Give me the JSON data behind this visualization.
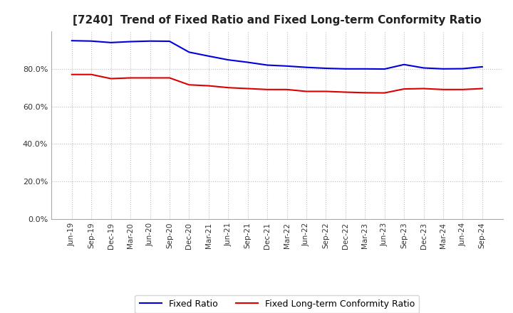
{
  "title": "[7240]  Trend of Fixed Ratio and Fixed Long-term Conformity Ratio",
  "title_fontsize": 11,
  "x_labels": [
    "Jun-19",
    "Sep-19",
    "Dec-19",
    "Mar-20",
    "Jun-20",
    "Sep-20",
    "Dec-20",
    "Mar-21",
    "Jun-21",
    "Sep-21",
    "Dec-21",
    "Mar-22",
    "Jun-22",
    "Sep-22",
    "Dec-22",
    "Mar-23",
    "Jun-23",
    "Sep-23",
    "Dec-23",
    "Mar-24",
    "Jun-24",
    "Sep-24"
  ],
  "fixed_ratio": [
    0.95,
    0.948,
    0.94,
    0.945,
    0.948,
    0.947,
    0.889,
    0.868,
    0.848,
    0.835,
    0.82,
    0.815,
    0.808,
    0.803,
    0.8,
    0.8,
    0.799,
    0.823,
    0.805,
    0.8,
    0.801,
    0.811
  ],
  "fixed_lt_ratio": [
    0.77,
    0.77,
    0.748,
    0.752,
    0.752,
    0.752,
    0.715,
    0.71,
    0.7,
    0.695,
    0.69,
    0.69,
    0.68,
    0.68,
    0.676,
    0.673,
    0.672,
    0.693,
    0.695,
    0.69,
    0.69,
    0.695
  ],
  "fixed_ratio_color": "#0000dd",
  "fixed_lt_ratio_color": "#dd0000",
  "ylim_min": 0.0,
  "ylim_max": 1.0,
  "yticks": [
    0.0,
    0.2,
    0.4,
    0.6,
    0.8
  ],
  "legend_fixed_ratio": "Fixed Ratio",
  "legend_fixed_lt_ratio": "Fixed Long-term Conformity Ratio",
  "background_color": "#ffffff",
  "grid_color": "#aaaaaa",
  "line_width": 1.5
}
